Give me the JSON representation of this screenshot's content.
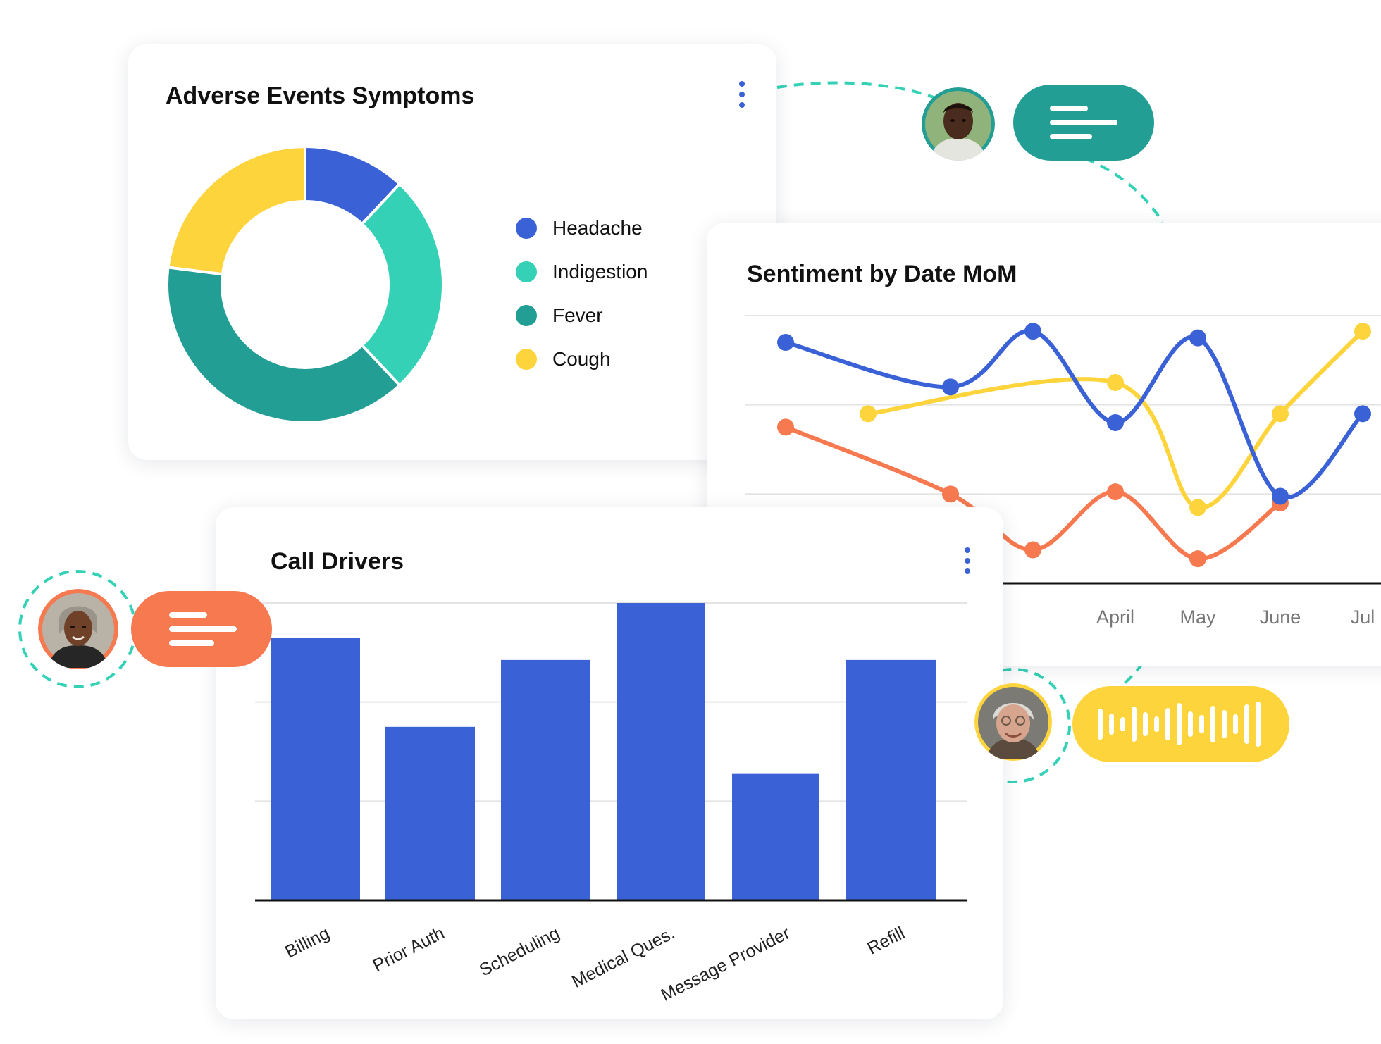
{
  "colors": {
    "blue": "#3a62d6",
    "light_teal": "#34d1b6",
    "dark_teal": "#229e95",
    "yellow": "#fed43d",
    "orange": "#f7794f",
    "connector": "#34d1b6"
  },
  "adverse_card": {
    "menu_icon": "kebab-menu-icon"
  },
  "sentiment_card": {},
  "calls_card": {
    "menu_icon": "kebab-menu-icon"
  },
  "avatars": [
    {
      "id": "avatar-young-man",
      "pill_icon": "message-lines-icon",
      "pill_color": "#229e95"
    },
    {
      "id": "avatar-woman",
      "pill_icon": "message-lines-icon",
      "pill_color": "#f7794f"
    },
    {
      "id": "avatar-elderly-woman",
      "pill_icon": "audio-waveform-icon",
      "pill_color": "#fed43d"
    }
  ],
  "chart_data": [
    {
      "type": "pie",
      "title": "Adverse Events Symptoms",
      "donut": true,
      "legend_position": "right",
      "series": [
        {
          "name": "Headache",
          "value": 12,
          "color": "#3a62d6"
        },
        {
          "name": "Indigestion",
          "value": 26,
          "color": "#34d1b6"
        },
        {
          "name": "Fever",
          "value": 39,
          "color": "#229e95"
        },
        {
          "name": "Cough",
          "value": 23,
          "color": "#fed43d"
        }
      ]
    },
    {
      "type": "line",
      "title": "Sentiment by Date MoM",
      "x": [
        "",
        "",
        "",
        "",
        "April",
        "May",
        "June",
        "Jul"
      ],
      "ylim": [
        0,
        6
      ],
      "grid": true,
      "smooth": true,
      "series": [
        {
          "color": "#3a62d6",
          "values": [
            5.4,
            null,
            4.4,
            5.65,
            3.6,
            5.5,
            1.95,
            3.8
          ]
        },
        {
          "color": "#fed43d",
          "values": [
            null,
            3.8,
            null,
            null,
            4.5,
            1.7,
            3.8,
            5.65
          ]
        },
        {
          "color": "#f7794f",
          "values": [
            3.5,
            null,
            2.0,
            0.75,
            2.05,
            0.55,
            1.8,
            null
          ]
        }
      ]
    },
    {
      "type": "bar",
      "title": "Call Drivers",
      "categories": [
        "Billing",
        "Prior Auth",
        "Scheduling",
        "Medical Ques.",
        "Message Provider",
        "Refill"
      ],
      "values": [
        53,
        35,
        48.5,
        60,
        25.5,
        48.5
      ],
      "ylim": [
        0,
        60
      ],
      "grid": true,
      "color": "#3a62d6"
    }
  ]
}
